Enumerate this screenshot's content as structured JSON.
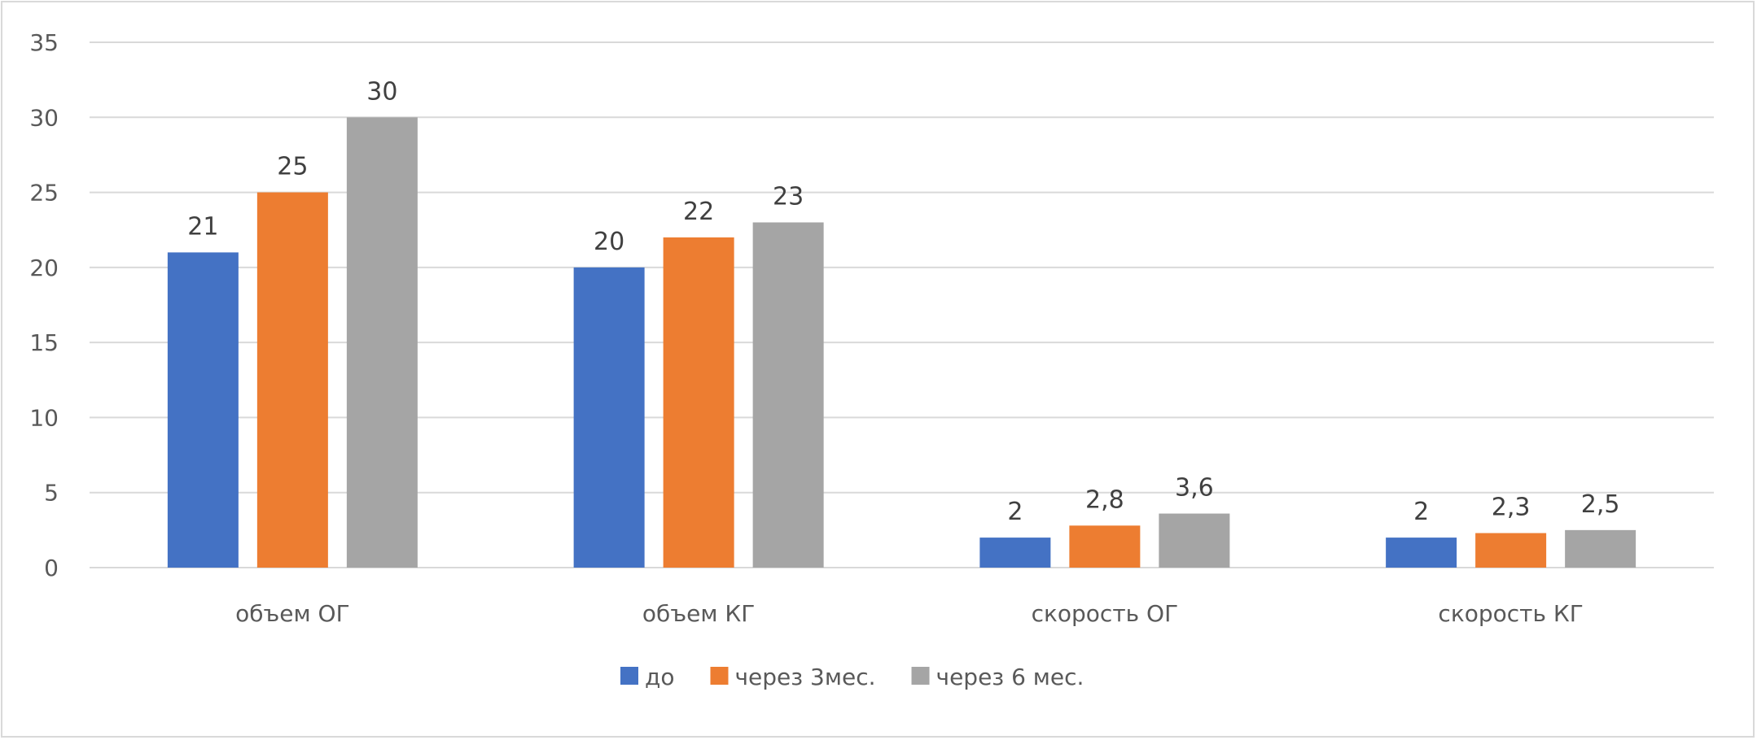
{
  "chart_data": {
    "type": "bar",
    "categories": [
      "объем ОГ",
      "объем КГ",
      "скорость ОГ",
      "скорость КГ"
    ],
    "series": [
      {
        "name": "до",
        "color": "#4472c4",
        "values": [
          21,
          20,
          2,
          2
        ],
        "labels": [
          "21",
          "20",
          "2",
          "2"
        ]
      },
      {
        "name": "через 3мес.",
        "color": "#ed7d31",
        "values": [
          25,
          22,
          2.8,
          2.3
        ],
        "labels": [
          "25",
          "22",
          "2,8",
          "2,3"
        ]
      },
      {
        "name": "через 6 мес.",
        "color": "#a5a5a5",
        "values": [
          30,
          23,
          3.6,
          2.5
        ],
        "labels": [
          "30",
          "23",
          "3,6",
          "2,5"
        ]
      }
    ],
    "yticks": [
      "0",
      "5",
      "10",
      "15",
      "20",
      "25",
      "30",
      "35"
    ],
    "ylim": [
      0,
      35
    ],
    "grid": true,
    "legend": "bottom",
    "title": "",
    "xlabel": "",
    "ylabel": ""
  }
}
